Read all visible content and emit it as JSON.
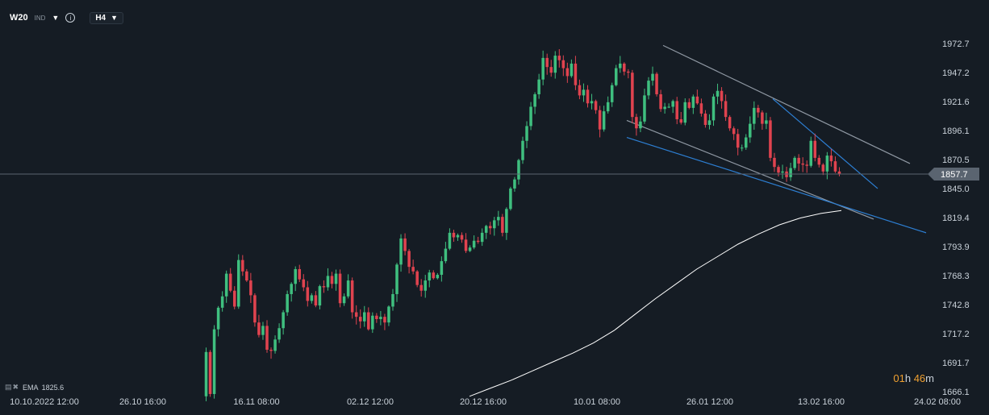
{
  "header": {
    "symbol": "W20",
    "exchange": "IND",
    "timeframe": "H4"
  },
  "indicator": {
    "label": "EMA",
    "value": "1825.6"
  },
  "countdown": {
    "hours": "01",
    "h_unit": "h",
    "minutes": "46",
    "m_unit": "m"
  },
  "colors": {
    "background": "#151c24",
    "up": "#3fbf7f",
    "down": "#e0434f",
    "ema": "#ffffff",
    "trend_gray": "#8f98a3",
    "trend_blue": "#2d7fd3",
    "current_price_bg": "#5a6470"
  },
  "chart_data": {
    "type": "candlestick",
    "title": "",
    "ylim": [
      1656,
      1990
    ],
    "yticks": [
      "1972.7",
      "1947.2",
      "1921.6",
      "1896.1",
      "1870.5",
      "1845.0",
      "1819.4",
      "1793.9",
      "1768.3",
      "1742.8",
      "1717.2",
      "1691.7",
      "1666.1"
    ],
    "xticks": [
      "10.10.2022  12:00",
      "26.10  16:00",
      "16.11  08:00",
      "02.12  12:00",
      "20.12  16:00",
      "10.01  08:00",
      "26.01  12:00",
      "13.02  16:00",
      "24.02  08:00"
    ],
    "current_price": "1857.7",
    "ema_label": "EMA 1825.6",
    "price_path": [
      [
        1662,
        1701,
        1664,
        1721,
        1740,
        1750,
        1770,
        1755,
        1741,
        1782,
        1772,
        1764,
        1751,
        1727,
        1716,
        1724,
        1703,
        1702,
        1712,
        1722,
        1736,
        1752,
        1761,
        1774,
        1765,
        1758,
        1746,
        1751,
        1742,
        1759,
        1758,
        1768,
        1761,
        1770,
        1744,
        1750,
        1764,
        1736,
        1732,
        1728,
        1736,
        1721,
        1733,
        1730,
        1732,
        1727,
        1741,
        1752,
        1778,
        1801,
        1790,
        1776,
        1772,
        1760,
        1755,
        1764,
        1771,
        1766,
        1769,
        1781,
        1792,
        1806,
        1802,
        1804,
        1800,
        1790,
        1793,
        1799,
        1798,
        1806,
        1812,
        1810,
        1817,
        1820,
        1806,
        1827,
        1845,
        1853,
        1870,
        1887,
        1900,
        1917,
        1928,
        1941,
        1960,
        1952,
        1947,
        1962,
        1958,
        1951,
        1944,
        1955,
        1936,
        1927,
        1932,
        1920,
        1922,
        1914,
        1897,
        1913,
        1921,
        1936,
        1951,
        1955,
        1948,
        1947,
        1908,
        1898,
        1904,
        1927,
        1940,
        1946,
        1928,
        1915,
        1917,
        1917,
        1922,
        1906,
        1903,
        1921,
        1916,
        1926,
        1920,
        1911,
        1901,
        1905,
        1926,
        1931,
        1922,
        1908,
        1898,
        1893,
        1881,
        1881,
        1890,
        1902,
        1916,
        1912,
        1902,
        1905,
        1872,
        1864,
        1859,
        1860,
        1855,
        1863,
        1872,
        1867,
        1866,
        1865,
        1887,
        1872,
        1866,
        1860,
        1874,
        1869,
        1860,
        1857.7
      ]
    ],
    "ema_series": [
      [
        1662,
        1669,
        1676,
        1684,
        1692,
        1700,
        1709,
        1720,
        1734,
        1748,
        1761,
        1774,
        1785,
        1796,
        1805,
        1813,
        1819,
        1823,
        1825.6
      ]
    ],
    "trendlines": [
      {
        "color": "gray",
        "from": [
          "12.01",
          1971
        ],
        "to": [
          "24.02",
          1867
        ]
      },
      {
        "color": "gray",
        "from": [
          "05.01",
          1905
        ],
        "to": [
          "22.02",
          1818
        ]
      },
      {
        "color": "blue",
        "from": [
          "05.01",
          1890
        ],
        "to": [
          "27.02",
          1806
        ]
      },
      {
        "color": "blue",
        "from": [
          "10.02",
          1924
        ],
        "to": [
          "23.02",
          1845
        ]
      }
    ]
  }
}
